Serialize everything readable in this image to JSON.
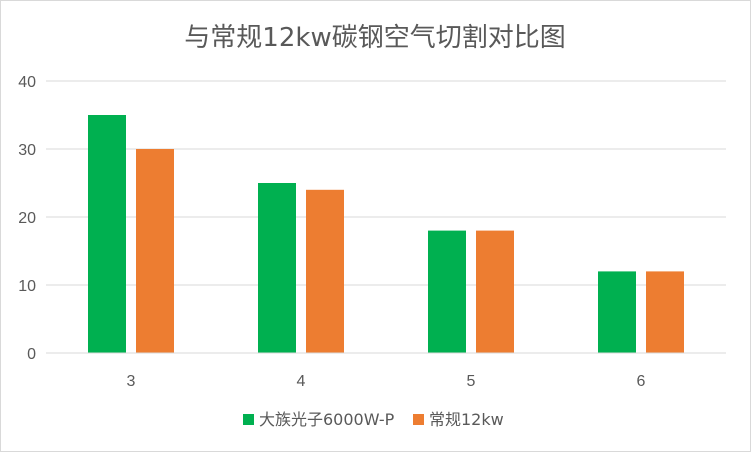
{
  "chart_data": {
    "type": "bar",
    "title": "与常规12kw碳钢空气切割对比图",
    "categories": [
      "3",
      "4",
      "5",
      "6"
    ],
    "series": [
      {
        "name": "大族光子6000W-P",
        "color": "#00b050",
        "values": [
          35,
          25,
          18,
          12
        ]
      },
      {
        "name": "常规12kw",
        "color": "#ed7d31",
        "values": [
          30,
          24,
          18,
          12
        ]
      }
    ],
    "ylim": [
      0,
      40
    ],
    "yticks": [
      0,
      10,
      20,
      30,
      40
    ],
    "grid": true,
    "legend_position": "bottom",
    "colors": {
      "gridline": "#d9d9d9",
      "axis": "#d9d9d9",
      "text": "#595959"
    }
  }
}
